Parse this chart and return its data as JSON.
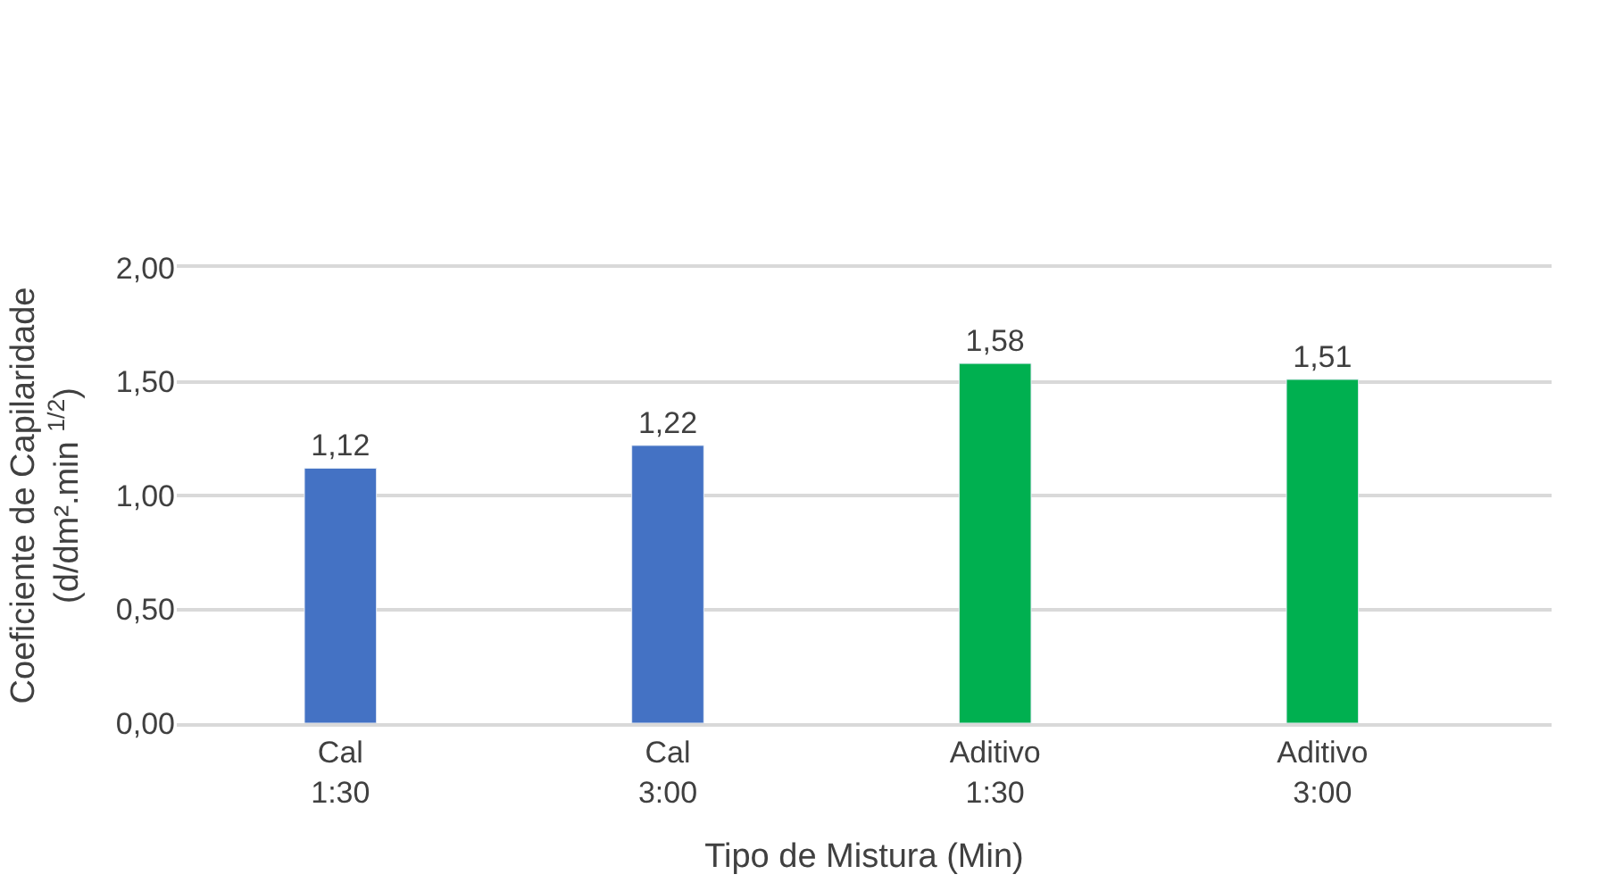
{
  "chart_data": {
    "type": "bar",
    "xlabel": "Tipo de Mistura (Min)",
    "ylabel": "Coeficiente de Capilaridade\n(d/dm².min $^{1/2}$)",
    "categories": [
      "Cal\n1:30",
      "Cal\n3:00",
      "Aditivo\n1:30",
      "Aditivo\n3:00"
    ],
    "values": [
      1.12,
      1.22,
      1.58,
      1.51
    ],
    "colors": [
      "#4472c4",
      "#4472c4",
      "#00b050",
      "#00b050"
    ],
    "value_labels": [
      "1,12",
      "1,22",
      "1,58",
      "1,51"
    ],
    "ylim": [
      0,
      2
    ],
    "yticks": [
      {
        "value": 0,
        "label": "0,00"
      },
      {
        "value": 0.5,
        "label": "0,50"
      },
      {
        "value": 1,
        "label": "1,00"
      },
      {
        "value": 1.5,
        "label": "1,50"
      },
      {
        "value": 2,
        "label": "2,00"
      }
    ],
    "grid": "y"
  }
}
